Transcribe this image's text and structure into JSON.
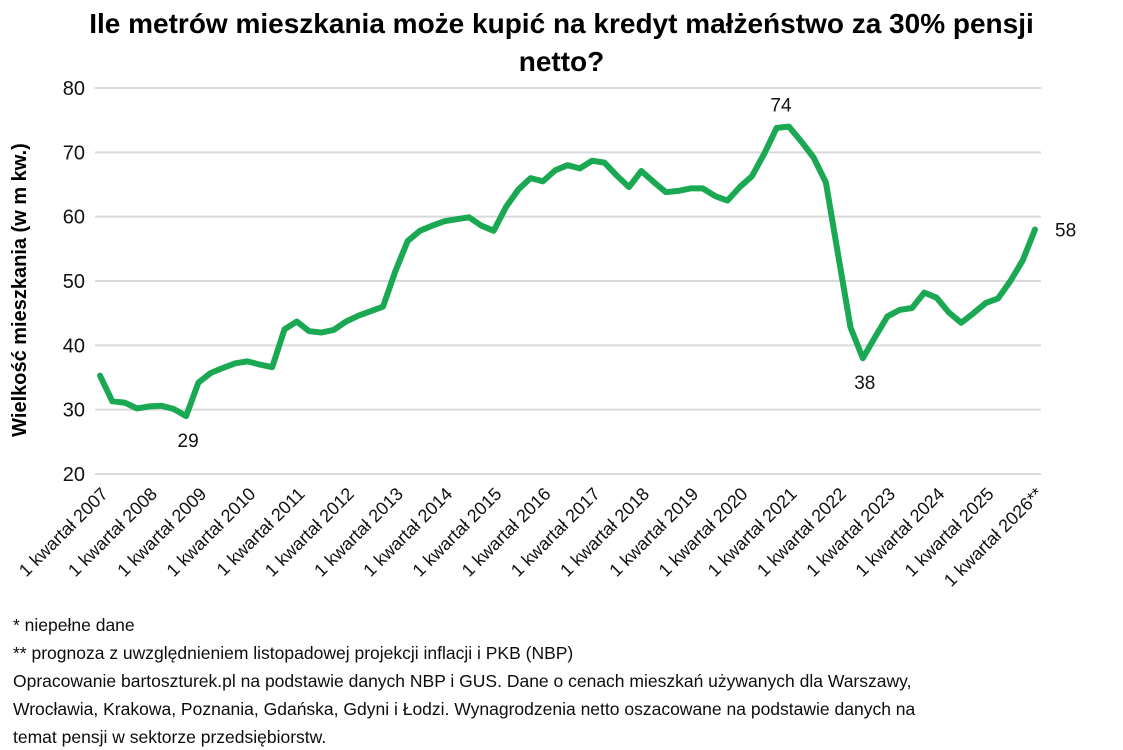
{
  "chart_data": {
    "type": "line",
    "title": "Ile metrów mieszkania może kupić na kredyt małżeństwo za 30% pensji netto?",
    "title_lines": [
      "Ile metrów mieszkania może kupić na kredyt małżeństwo za 30% pensji",
      "netto?"
    ],
    "ylabel": "Wielkość mieszkania (w m kw.)",
    "xlabel": "",
    "ylim": [
      20,
      80
    ],
    "yticks": [
      80,
      70,
      60,
      50,
      40,
      30,
      20
    ],
    "grid": true,
    "legend": false,
    "x_frequency": "quarterly",
    "x_start": "1 kwartał 2007",
    "x_end": "1 kwartał 2026",
    "x_tick_labels": [
      "1 kwartał 2007",
      "1 kwartał 2008",
      "1 kwartał 2009",
      "1 kwartał 2010",
      "1 kwartał 2011",
      "1 kwartał 2012",
      "1 kwartał 2013",
      "1 kwartał 2014",
      "1 kwartał 2015",
      "1 kwartał 2016",
      "1 kwartał 2017",
      "1 kwartał 2018",
      "1 kwartał 2019",
      "1 kwartał 2020",
      "1 kwartał 2021",
      "1 kwartał 2022",
      "1 kwartał 2023",
      "1 kwartał 2024",
      "1 kwartał 2025",
      "1 kwartał 2026**"
    ],
    "values": [
      35.3,
      31.3,
      31.1,
      30.2,
      30.5,
      30.6,
      30.1,
      29,
      34.2,
      35.7,
      36.5,
      37.2,
      37.5,
      37.0,
      36.6,
      42.5,
      43.7,
      42.2,
      42.0,
      42.4,
      43.7,
      44.6,
      45.3,
      46.0,
      51.5,
      56.2,
      57.8,
      58.6,
      59.3,
      59.6,
      59.9,
      58.6,
      57.8,
      61.5,
      64.2,
      66.0,
      65.5,
      67.2,
      68.0,
      67.5,
      68.7,
      68.4,
      66.4,
      64.6,
      67.1,
      65.4,
      63.8,
      64.0,
      64.4,
      64.4,
      63.2,
      62.5,
      64.6,
      66.3,
      69.8,
      73.8,
      74,
      71.7,
      69.2,
      65.3,
      54.0,
      42.8,
      38,
      41.3,
      44.5,
      45.5,
      45.8,
      48.2,
      47.4,
      45.1,
      43.5,
      45.0,
      46.6,
      47.3,
      50.0,
      53.2,
      58
    ],
    "annotations": [
      {
        "label": "29",
        "index": 7,
        "position": "below"
      },
      {
        "label": "74",
        "index": 56,
        "position": "above"
      },
      {
        "label": "38",
        "index": 62,
        "position": "below"
      },
      {
        "label": "58",
        "index": 76,
        "position": "right"
      }
    ],
    "colors": {
      "line": "#1aa952",
      "grid": "#d9d9d9",
      "text": "#111111",
      "background": "#ffffff"
    }
  },
  "footnotes": [
    "* niepełne dane",
    "** prognoza z uwzględnieniem listopadowej projekcji inflacji i PKB (NBP)",
    "Opracowanie bartoszturek.pl na podstawie danych NBP i GUS. Dane o cenach mieszkań używanych dla Warszawy,",
    "Wrocławia, Krakowa, Poznania, Gdańska, Gdyni i Łodzi. Wynagrodzenia netto oszacowane na podstawie danych na",
    "temat pensji w sektorze przedsiębiorstw."
  ]
}
